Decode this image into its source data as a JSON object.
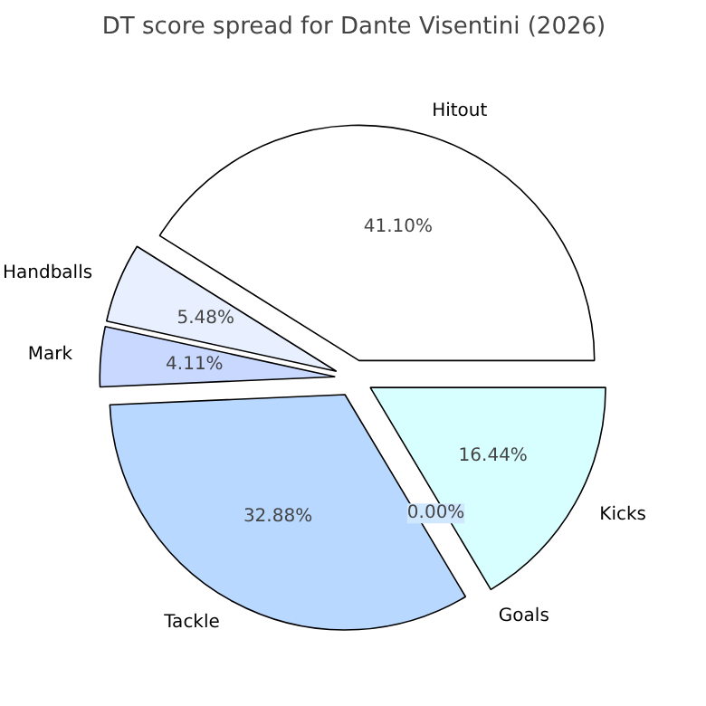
{
  "chart_data": {
    "type": "pie",
    "title": "DT score spread for Dante Visentini (2026)",
    "categories": [
      "Hitout",
      "Handballs",
      "Mark",
      "Tackle",
      "Goals",
      "Kicks"
    ],
    "values": [
      41.1,
      5.48,
      4.11,
      32.88,
      0.0,
      16.44
    ],
    "value_labels": [
      "41.10%",
      "5.48%",
      "4.11%",
      "32.88%",
      "0.00%",
      "16.44%"
    ],
    "colors": [
      "#ffffff",
      "#e8f0ff",
      "#c8d8ff",
      "#b8d8ff",
      "#d0e8ff",
      "#d8ffff"
    ]
  }
}
